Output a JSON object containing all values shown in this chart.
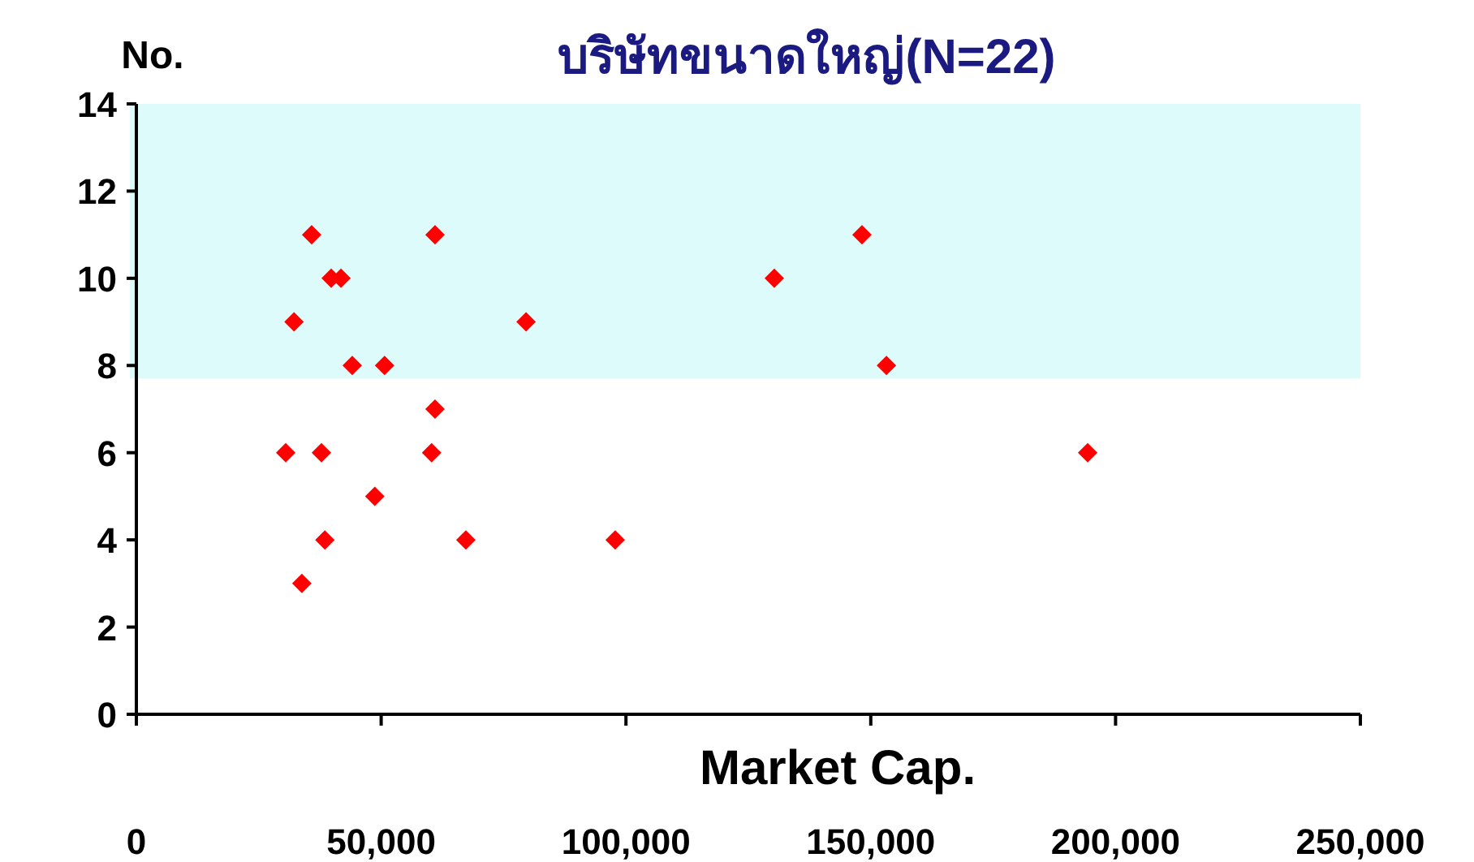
{
  "chart_data": {
    "type": "scatter",
    "title": "บริษัทขนาดใหญ่(N=22)",
    "xlabel": "Market Cap.",
    "ylabel": "No.",
    "xlim": [
      0,
      250000
    ],
    "xticks": [
      {
        "value": 0,
        "label": "0"
      },
      {
        "value": 50000,
        "label": "50,000"
      },
      {
        "value": 100000,
        "label": "100,000"
      },
      {
        "value": 150000,
        "label": "150,000"
      },
      {
        "value": 200000,
        "label": "200,000"
      },
      {
        "value": 250000,
        "label": "250,000"
      }
    ],
    "ylim": [
      0,
      14
    ],
    "yticks": [
      0,
      2,
      4,
      6,
      8,
      10,
      12,
      14
    ],
    "marker": "diamond",
    "grid": false,
    "bands": [
      {
        "axis": "y",
        "from": 7.7,
        "to": 14,
        "color": "#ddfbfb"
      }
    ],
    "series": [
      {
        "color": "#ff0000",
        "x": [
          35800,
          32200,
          39800,
          41800,
          44100,
          50700,
          30500,
          37800,
          38500,
          33800,
          48700,
          61000,
          61000,
          60300,
          67300,
          79600,
          97800,
          130300,
          148200,
          153200,
          194300
        ],
        "values": [
          11,
          9,
          10,
          10,
          8,
          8,
          6,
          6,
          4,
          3,
          5,
          11,
          7,
          6,
          4,
          9,
          4,
          10,
          11,
          8,
          6
        ]
      }
    ]
  }
}
